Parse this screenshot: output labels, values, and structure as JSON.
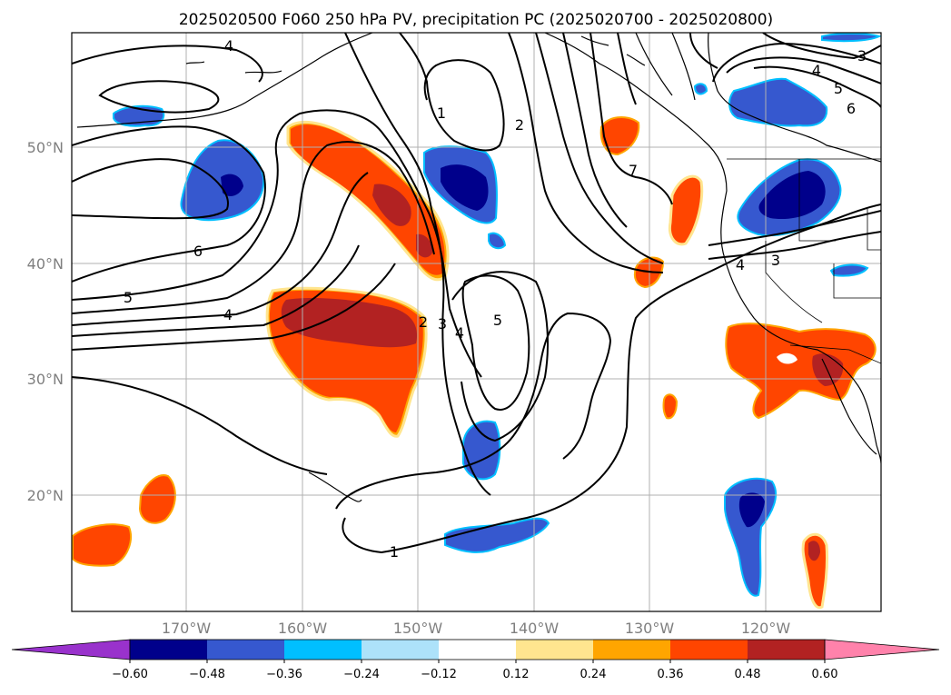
{
  "title": "2025020500 F060 250 hPa PV, precipitation PC (2025020700 - 2025020800)",
  "lat_labels": [
    "50°N",
    "40°N",
    "30°N",
    "20°N"
  ],
  "lon_labels": [
    "170°W",
    "160°W",
    "150°W",
    "140°W",
    "130°W",
    "120°W"
  ],
  "contour_labels": [
    "4",
    "6",
    "5",
    "4",
    "1",
    "2",
    "2",
    "3",
    "4",
    "5",
    "7",
    "1",
    "4",
    "5",
    "6",
    "3",
    "4",
    "3"
  ],
  "colorbar": {
    "ticks": [
      "−0.60",
      "−0.48",
      "−0.36",
      "−0.24",
      "−0.12",
      "0.12",
      "0.24",
      "0.36",
      "0.48",
      "0.60"
    ],
    "colors": [
      "#9932CC",
      "#00008B",
      "#3658CF",
      "#00BFFF",
      "#ADE2FA",
      "#FFFFFF",
      "#FFE58F",
      "#FFA500",
      "#FF4500",
      "#B22222",
      "#FF82AB"
    ]
  },
  "colors": {
    "neg_strong": "#00008B",
    "neg_mid": "#3658CF",
    "neg_light": "#00BFFF",
    "pos_mid": "#FF4500",
    "pos_strong": "#B22222",
    "pos_light": "#FFA500"
  }
}
